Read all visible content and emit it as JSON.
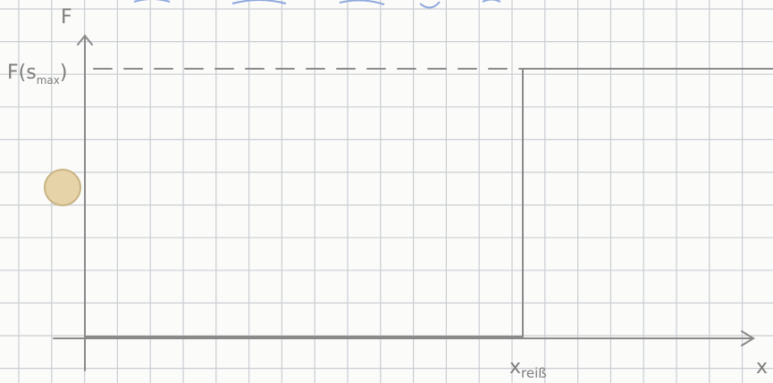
{
  "diagram": {
    "y_axis_label": "F",
    "level_label": {
      "main": "F(s",
      "sub": "max",
      "close": ")"
    },
    "x_axis_label": "x",
    "step_label": {
      "main": "x",
      "sub": "reiß"
    }
  }
}
